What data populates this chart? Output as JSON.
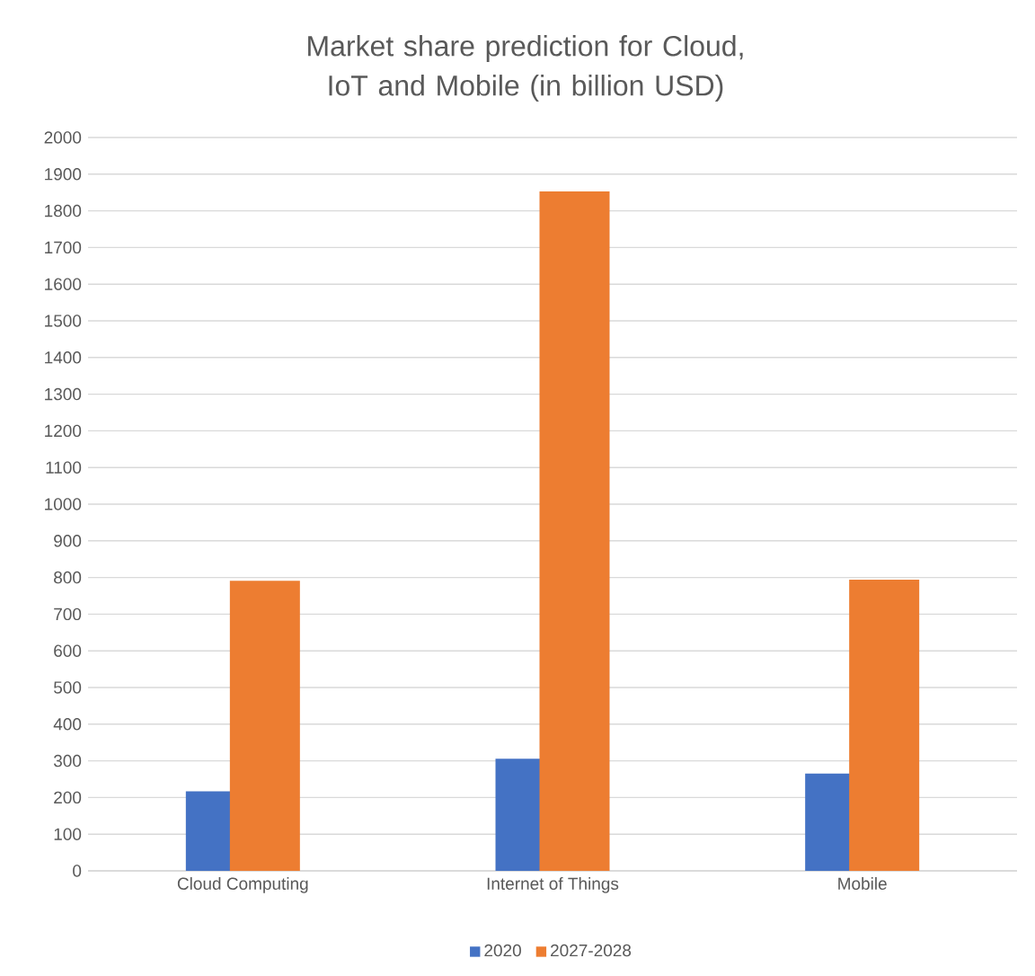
{
  "chart_data": {
    "type": "bar",
    "title": "Market share prediction for Cloud, IoT and Mobile (in billion USD)",
    "categories": [
      "Cloud Computing",
      "Internet of Things",
      "Mobile"
    ],
    "series": [
      {
        "name": "2020",
        "color": "#4472c4",
        "values": [
          217,
          306,
          265
        ]
      },
      {
        "name": "2027-2028",
        "color": "#ed7d31",
        "values": [
          791,
          1853,
          794
        ]
      }
    ],
    "ylim": [
      0,
      2000
    ],
    "yticks": [
      0,
      100,
      200,
      300,
      400,
      500,
      600,
      700,
      800,
      900,
      1000,
      1100,
      1200,
      1300,
      1400,
      1500,
      1600,
      1700,
      1800,
      1900,
      2000
    ],
    "grid": "y",
    "legend": "bottom"
  }
}
